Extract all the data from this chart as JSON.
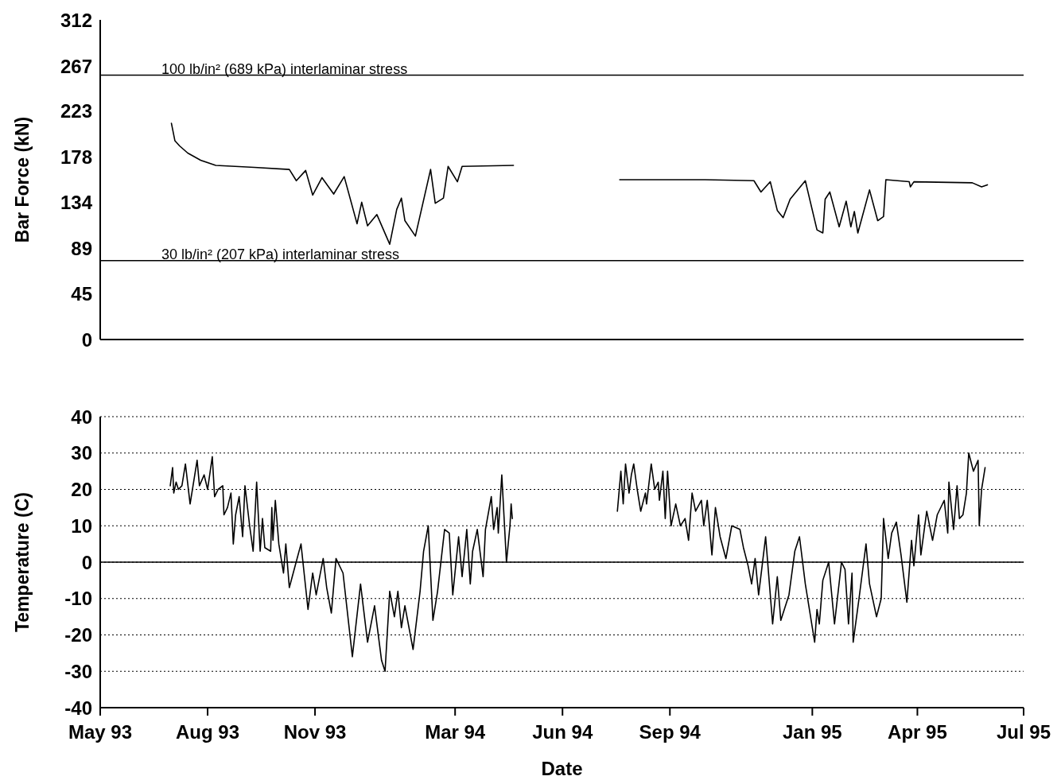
{
  "chart_data": [
    {
      "type": "line",
      "ylabel": "Bar Force (kN)",
      "ylim": [
        0,
        312
      ],
      "yticks": [
        0,
        45,
        89,
        134,
        178,
        223,
        267,
        312
      ],
      "xlim": [
        "1993-05-01",
        "1995-07-01"
      ],
      "tick_labels": "y",
      "grid": false,
      "xticks": [
        {
          "value": "1993-05-01",
          "label": null
        },
        {
          "value": "1993-08-01",
          "label": null
        },
        {
          "value": "1993-11-01",
          "label": null
        },
        {
          "value": "1994-03-01",
          "label": null
        },
        {
          "value": "1994-06-01",
          "label": null
        },
        {
          "value": "1994-09-01",
          "label": null
        },
        {
          "value": "1995-01-01",
          "label": null
        },
        {
          "value": "1995-04-01",
          "label": null
        },
        {
          "value": "1995-07-01",
          "label": null
        }
      ],
      "ref_lines": [
        {
          "axis": "y",
          "value": 258,
          "label": "100 lb/in² (689  kPa) interlaminar stress",
          "color": "#000000"
        },
        {
          "axis": "y",
          "value": 77,
          "label": "30 lb/in² (207  kPa) interlaminar stress",
          "color": "#000000"
        }
      ],
      "series": [
        {
          "color": "#000000",
          "x": [
            "1993-07-01",
            "1993-07-04",
            "1993-07-08",
            "1993-07-15",
            "1993-07-26",
            "1993-08-08",
            "1993-09-10",
            "1993-10-10",
            "1993-10-16",
            "1993-10-24",
            "1993-10-30",
            "1993-11-07",
            "1993-11-17",
            "1993-11-26",
            "1993-12-07",
            "1993-12-11",
            "1993-12-16",
            "1993-12-24",
            "1994-01-04",
            "1994-01-10",
            "1994-01-14",
            "1994-01-17",
            "1994-01-26",
            "1994-02-08",
            "1994-02-12",
            "1994-02-19",
            "1994-02-23",
            "1994-03-03",
            "1994-03-07",
            "1994-04-20",
            "1994-06-01",
            "1994-07-20",
            "1994-10-01",
            "1994-11-12",
            "1994-11-18",
            "1994-11-26",
            "1994-12-02",
            "1994-12-07",
            "1994-12-13",
            "1994-12-26",
            "1995-01-05",
            "1995-01-10",
            "1995-01-12",
            "1995-01-16",
            "1995-01-24",
            "1995-01-30",
            "1995-02-03",
            "1995-02-06",
            "1995-02-09",
            "1995-02-19",
            "1995-02-26",
            "1995-03-03",
            "1995-03-05",
            "1995-03-25",
            "1995-03-26",
            "1995-03-29",
            "1995-05-18",
            "1995-05-26",
            "1995-05-31"
          ],
          "values": [
            211,
            194,
            189,
            182,
            175,
            170,
            168,
            166,
            155,
            165,
            141,
            158,
            142,
            159,
            113,
            134,
            111,
            122,
            93,
            127,
            138,
            116,
            101,
            166,
            133,
            138,
            169,
            154,
            169,
            170,
            null,
            156,
            156,
            155,
            144,
            154,
            126,
            119,
            137,
            155,
            107,
            104,
            137,
            144,
            110,
            135,
            110,
            125,
            104,
            146,
            116,
            120,
            156,
            154,
            149,
            154,
            153,
            149,
            151
          ]
        }
      ]
    },
    {
      "type": "line",
      "xlabel": "Date",
      "ylabel": "Temperature (C)",
      "ylim": [
        -40,
        40
      ],
      "yticks": [
        -40,
        -30,
        -20,
        -10,
        0,
        10,
        20,
        30,
        40
      ],
      "xlim": [
        "1993-05-01",
        "1995-07-01"
      ],
      "grid": "y",
      "xticks": [
        {
          "value": "1993-05-01",
          "label": "May 93"
        },
        {
          "value": "1993-08-01",
          "label": "Aug 93"
        },
        {
          "value": "1993-11-01",
          "label": "Nov 93"
        },
        {
          "value": "1994-03-01",
          "label": "Mar 94"
        },
        {
          "value": "1994-06-01",
          "label": "Jun 94"
        },
        {
          "value": "1994-09-01",
          "label": "Sep 94"
        },
        {
          "value": "1995-01-01",
          "label": "Jan 95"
        },
        {
          "value": "1995-04-01",
          "label": "Apr 95"
        },
        {
          "value": "1995-07-01",
          "label": "Jul 95"
        }
      ],
      "ref_lines": [
        {
          "axis": "y",
          "value": 0,
          "color": "#000000"
        }
      ],
      "series": [
        {
          "color": "#000000",
          "x": [
            "1993-06-30",
            "1993-07-02",
            "1993-07-03",
            "1993-07-05",
            "1993-07-07",
            "1993-07-10",
            "1993-07-13",
            "1993-07-17",
            "1993-07-23",
            "1993-07-25",
            "1993-07-29",
            "1993-08-01",
            "1993-08-05",
            "1993-08-07",
            "1993-08-10",
            "1993-08-14",
            "1993-08-15",
            "1993-08-18",
            "1993-08-21",
            "1993-08-23",
            "1993-08-25",
            "1993-08-28",
            "1993-08-31",
            "1993-09-02",
            "1993-09-06",
            "1993-09-09",
            "1993-09-12",
            "1993-09-15",
            "1993-09-17",
            "1993-09-19",
            "1993-09-24",
            "1993-09-25",
            "1993-09-26",
            "1993-09-28",
            "1993-10-01",
            "1993-10-05",
            "1993-10-07",
            "1993-10-10",
            "1993-10-15",
            "1993-10-20",
            "1993-10-24",
            "1993-10-26",
            "1993-10-30",
            "1993-11-02",
            "1993-11-08",
            "1993-11-11",
            "1993-11-15",
            "1993-11-19",
            "1993-11-25",
            "1993-12-03",
            "1993-12-10",
            "1993-12-16",
            "1993-12-22",
            "1993-12-28",
            "1993-12-31",
            "1994-01-04",
            "1994-01-08",
            "1994-01-11",
            "1994-01-14",
            "1994-01-17",
            "1994-01-24",
            "1994-01-30",
            "1994-02-02",
            "1994-02-06",
            "1994-02-10",
            "1994-02-14",
            "1994-02-20",
            "1994-02-24",
            "1994-02-27",
            "1994-03-04",
            "1994-03-07",
            "1994-03-11",
            "1994-03-14",
            "1994-03-16",
            "1994-03-20",
            "1994-03-25",
            "1994-03-27",
            "1994-04-01",
            "1994-04-03",
            "1994-04-06",
            "1994-04-07",
            "1994-04-10",
            "1994-04-14",
            "1994-04-17",
            "1994-04-18",
            "1994-04-19",
            "1994-06-01",
            "1994-07-18",
            "1994-07-21",
            "1994-07-23",
            "1994-07-25",
            "1994-07-28",
            "1994-07-30",
            "1994-08-01",
            "1994-08-04",
            "1994-08-07",
            "1994-08-11",
            "1994-08-12",
            "1994-08-16",
            "1994-08-19",
            "1994-08-22",
            "1994-08-23",
            "1994-08-26",
            "1994-08-28",
            "1994-08-30",
            "1994-09-02",
            "1994-09-06",
            "1994-09-10",
            "1994-09-14",
            "1994-09-17",
            "1994-09-20",
            "1994-09-23",
            "1994-09-28",
            "1994-09-30",
            "1994-10-03",
            "1994-10-07",
            "1994-10-10",
            "1994-10-14",
            "1994-10-19",
            "1994-10-24",
            "1994-10-31",
            "1994-11-03",
            "1994-11-07",
            "1994-11-10",
            "1994-11-13",
            "1994-11-16",
            "1994-11-19",
            "1994-11-22",
            "1994-11-28",
            "1994-12-02",
            "1994-12-05",
            "1994-12-12",
            "1994-12-17",
            "1994-12-21",
            "1994-12-26",
            "1995-01-03",
            "1995-01-05",
            "1995-01-07",
            "1995-01-10",
            "1995-01-15",
            "1995-01-20",
            "1995-01-26",
            "1995-01-29",
            "1995-02-01",
            "1995-02-04",
            "1995-02-05",
            "1995-02-10",
            "1995-02-16",
            "1995-02-19",
            "1995-02-25",
            "1995-03-01",
            "1995-03-03",
            "1995-03-07",
            "1995-03-10",
            "1995-03-14",
            "1995-03-18",
            "1995-03-23",
            "1995-03-27",
            "1995-03-29",
            "1995-04-02",
            "1995-04-04",
            "1995-04-09",
            "1995-04-14",
            "1995-04-18",
            "1995-04-24",
            "1995-04-27",
            "1995-04-28",
            "1995-05-02",
            "1995-05-05",
            "1995-05-07",
            "1995-05-10",
            "1995-05-13",
            "1995-05-15",
            "1995-05-19",
            "1995-05-23",
            "1995-05-24",
            "1995-05-26",
            "1995-05-29"
          ],
          "values": [
            21,
            26,
            19,
            22,
            20,
            21,
            27,
            16,
            28,
            21,
            24,
            20,
            29,
            18,
            20,
            21,
            13,
            15,
            19,
            5,
            13,
            18,
            7,
            21,
            10,
            3,
            22,
            3,
            12,
            4,
            3,
            15,
            6,
            17,
            5,
            -3,
            5,
            -7,
            -1,
            5,
            -7,
            -13,
            -3,
            -9,
            1,
            -7,
            -14,
            1,
            -3,
            -26,
            -6,
            -22,
            -12,
            -27,
            -30,
            -8,
            -15,
            -8,
            -18,
            -12,
            -24,
            -8,
            3,
            10,
            -16,
            -8,
            9,
            8,
            -9,
            7,
            -4,
            9,
            -6,
            3,
            9,
            -4,
            9,
            18,
            9,
            15,
            8,
            24,
            0,
            10,
            16,
            12,
            null,
            14,
            25,
            16,
            27,
            19,
            24,
            27,
            20,
            14,
            19,
            16,
            27,
            20,
            22,
            17,
            25,
            12,
            25,
            10,
            16,
            10,
            12,
            6,
            19,
            14,
            17,
            10,
            17,
            2,
            15,
            7,
            1,
            10,
            9,
            4,
            -1,
            -6,
            1,
            -9,
            -1,
            7,
            -17,
            -4,
            -16,
            -9,
            3,
            7,
            -6,
            -22,
            -13,
            -17,
            -5,
            0,
            -17,
            0,
            -2,
            -17,
            -3,
            -22,
            -10,
            5,
            -6,
            -15,
            -10,
            12,
            1,
            8,
            11,
            2,
            -11,
            6,
            -1,
            13,
            2,
            14,
            6,
            13,
            17,
            8,
            22,
            9,
            21,
            12,
            13,
            19,
            30,
            25,
            28,
            10,
            20,
            26
          ]
        }
      ]
    }
  ]
}
